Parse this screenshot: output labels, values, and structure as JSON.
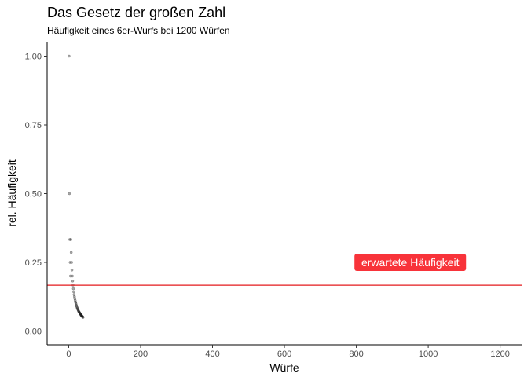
{
  "chart_data": {
    "type": "scatter",
    "title": "Das Gesetz der großen Zahl",
    "subtitle": "Häufigkeit eines 6er-Wurfs bei 1200 Würfen",
    "xlabel": "Würfe",
    "ylabel": "rel. Häufigkeit",
    "xlim": [
      -60,
      1262
    ],
    "ylim": [
      -0.05,
      1.05
    ],
    "x_ticks": [
      0,
      200,
      400,
      600,
      800,
      1000,
      1200
    ],
    "y_ticks": [
      0.0,
      0.25,
      0.5,
      0.75,
      1.0
    ],
    "x_tick_labels": [
      "0",
      "200",
      "400",
      "600",
      "800",
      "1000",
      "1200"
    ],
    "y_tick_labels": [
      "0.00",
      "0.25",
      "0.50",
      "0.75",
      "1.00"
    ],
    "grid": false,
    "point_color": "#000000",
    "point_opacity": 0.35,
    "reference_line": {
      "y": 0.1667,
      "color": "#e41a1c"
    },
    "annotation": {
      "text": "erwartete Häufigkeit",
      "x": 950,
      "y": 0.25,
      "fill": "#f8333a"
    },
    "series": [
      {
        "points": [
          [
            1,
            1.0
          ],
          [
            2,
            0.5
          ],
          [
            3,
            0.333
          ],
          [
            4,
            0.25
          ],
          [
            5,
            0.2
          ],
          [
            6,
            0.333
          ],
          [
            7,
            0.286
          ],
          [
            8,
            0.25
          ],
          [
            9,
            0.222
          ],
          [
            10,
            0.2
          ],
          [
            11,
            0.182
          ],
          [
            12,
            0.167
          ],
          [
            13,
            0.154
          ],
          [
            14,
            0.143
          ],
          [
            15,
            0.133
          ],
          [
            16,
            0.125
          ],
          [
            17,
            0.118
          ],
          [
            18,
            0.111
          ],
          [
            19,
            0.105
          ],
          [
            20,
            0.1
          ],
          [
            21,
            0.095
          ],
          [
            22,
            0.091
          ],
          [
            23,
            0.087
          ],
          [
            24,
            0.083
          ],
          [
            25,
            0.08
          ],
          [
            26,
            0.077
          ],
          [
            27,
            0.074
          ],
          [
            28,
            0.071
          ],
          [
            29,
            0.069
          ],
          [
            30,
            0.067
          ],
          [
            31,
            0.065
          ],
          [
            32,
            0.063
          ],
          [
            33,
            0.061
          ],
          [
            34,
            0.059
          ],
          [
            35,
            0.057
          ],
          [
            36,
            0.056
          ],
          [
            37,
            0.054
          ],
          [
            38,
            0.053
          ],
          [
            39,
            0.051
          ],
          [
            40,
            0.05
          ]
        ]
      }
    ]
  }
}
